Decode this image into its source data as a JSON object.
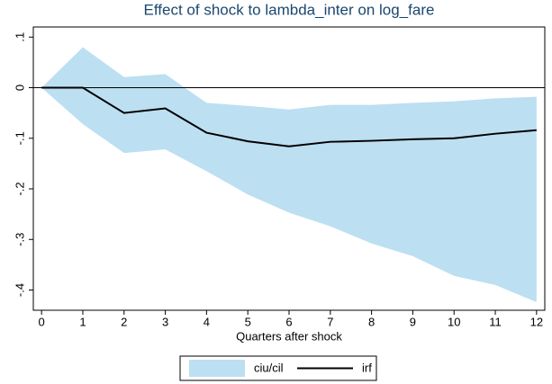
{
  "chart_data": {
    "type": "line",
    "title": "Effect of shock to lambda_inter on log_fare",
    "xlabel": "Quarters after shock",
    "x": [
      0,
      1,
      2,
      3,
      4,
      5,
      6,
      7,
      8,
      9,
      10,
      11,
      12
    ],
    "xlim": [
      -0.2,
      12.2
    ],
    "xticks": [
      0,
      1,
      2,
      3,
      4,
      5,
      6,
      7,
      8,
      9,
      10,
      11,
      12
    ],
    "ylim": [
      -0.44,
      0.12
    ],
    "yticks": [
      {
        "value": 0.1,
        "label": ".1"
      },
      0,
      {
        "value": -0.1,
        "label": "-.1"
      },
      {
        "value": -0.2,
        "label": "-.2"
      },
      {
        "value": -0.3,
        "label": "-.3"
      },
      {
        "value": -0.4,
        "label": "-.4"
      }
    ],
    "yline": 0,
    "legend": "bottom",
    "series": [
      {
        "name": "ciu/cil",
        "type": "band",
        "color": "#bcdff2",
        "upper": [
          0,
          0.08,
          0.021,
          0.027,
          -0.03,
          -0.036,
          -0.043,
          -0.034,
          -0.034,
          -0.03,
          -0.027,
          -0.021,
          -0.018
        ],
        "lower": [
          0,
          -0.072,
          -0.129,
          -0.122,
          -0.165,
          -0.211,
          -0.247,
          -0.274,
          -0.308,
          -0.333,
          -0.372,
          -0.39,
          -0.424
        ]
      },
      {
        "name": "irf",
        "type": "line",
        "color": "#000000",
        "values": [
          0,
          0,
          -0.05,
          -0.041,
          -0.089,
          -0.106,
          -0.116,
          -0.107,
          -0.105,
          -0.102,
          -0.1,
          -0.091,
          -0.084
        ]
      }
    ]
  }
}
